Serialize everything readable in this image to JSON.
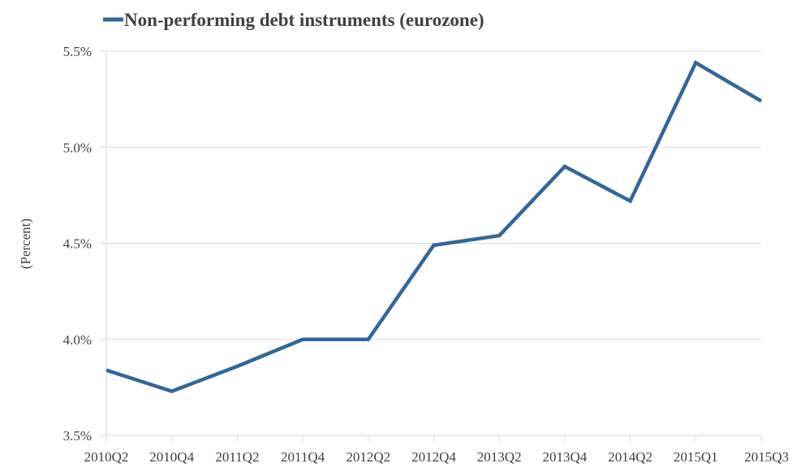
{
  "chart_data": {
    "type": "line",
    "title": "",
    "legend": [
      {
        "name": "Non-performing debt instruments (eurozone)",
        "color": "#336699"
      }
    ],
    "legend_position": "top",
    "xlabel": "",
    "ylabel": "(Percent)",
    "ylim": [
      3.5,
      5.5
    ],
    "y_ticks": [
      "3.5%",
      "4.0%",
      "4.5%",
      "5.0%",
      "5.5%"
    ],
    "y_tick_values": [
      3.5,
      4.0,
      4.5,
      5.0,
      5.5
    ],
    "grid": {
      "horizontal": true,
      "vertical": false
    },
    "categories": [
      "2010Q2",
      "2010Q4",
      "2011Q2",
      "2011Q4",
      "2012Q2",
      "2012Q4",
      "2013Q2",
      "2013Q4",
      "2014Q2",
      "2015Q1",
      "2015Q3"
    ],
    "series": [
      {
        "name": "Non-performing debt instruments (eurozone)",
        "color": "#336699",
        "values": [
          3.84,
          3.73,
          3.86,
          4.0,
          4.0,
          4.49,
          4.54,
          4.9,
          4.72,
          5.44,
          5.24
        ]
      }
    ]
  }
}
